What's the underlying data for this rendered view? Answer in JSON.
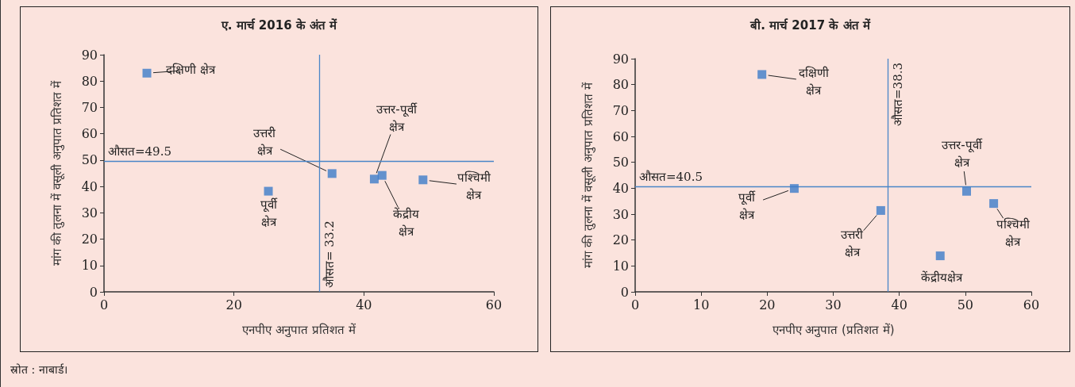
{
  "chart_data": [
    {
      "type": "scatter",
      "title": "ए. मार्च 2016 के अंत में",
      "xlabel": "एनपीए अनुपात प्रतिशत में",
      "ylabel": "मांग की तुलना में वसूली अनुपात प्रतिशत में",
      "xlim": [
        0,
        60
      ],
      "xticks": [
        0,
        20,
        40,
        60
      ],
      "ylim": [
        0,
        90
      ],
      "yticks": [
        0,
        10,
        20,
        30,
        40,
        50,
        60,
        70,
        80,
        90
      ],
      "grid": false,
      "marker": "square",
      "series": [
        {
          "color": "#3d7cc9",
          "x": [
            6.6,
            25.3,
            35.1,
            41.6,
            42.8,
            49.1
          ],
          "values": [
            83,
            38.2,
            44.9,
            42.8,
            44.2,
            42.5
          ]
        }
      ],
      "ref_lines": [
        {
          "axis": "x",
          "value": 33.2,
          "label": "औसत= 33.2",
          "color": "#4a86c8"
        },
        {
          "axis": "y",
          "value": 49.5,
          "label": "औसत=49.5",
          "color": "#4a86c8"
        }
      ],
      "annotations": [
        {
          "text": "दक्षिणी क्षेत्र",
          "x": 6.6,
          "y": 83
        },
        {
          "text": "पूर्वी क्षेत्र",
          "x": 25.3,
          "y": 38.2
        },
        {
          "text": "उत्तरी क्षेत्र",
          "x": 35.1,
          "y": 44.9
        },
        {
          "text": "उत्तर-पूर्वी क्षेत्र",
          "x": 41.6,
          "y": 42.8
        },
        {
          "text": "केंद्रीय क्षेत्र",
          "x": 42.8,
          "y": 44.2
        },
        {
          "text": "पश्चिमी क्षेत्र",
          "x": 49.1,
          "y": 42.5
        },
        "स्रोत : नाबार्ड।"
      ]
    },
    {
      "type": "scatter",
      "title": "बी. मार्च 2017 के अंत में",
      "xlabel": "एनपीए अनुपात (प्रतिशत में)",
      "ylabel": "मांग की तुलना में वसूली अनुपात प्रतिशत में",
      "xlim": [
        0,
        60
      ],
      "xticks": [
        0,
        10,
        20,
        30,
        40,
        50,
        60
      ],
      "ylim": [
        0,
        90
      ],
      "yticks": [
        0,
        10,
        20,
        30,
        40,
        50,
        60,
        70,
        80,
        90
      ],
      "grid": false,
      "marker": "square",
      "series": [
        {
          "color": "#3d7cc9",
          "x": [
            19.2,
            24.1,
            37.2,
            46.2,
            50.2,
            54.3
          ],
          "values": [
            83.9,
            39.9,
            31.4,
            13.9,
            38.8,
            34.1
          ]
        }
      ],
      "ref_lines": [
        {
          "axis": "x",
          "value": 38.3,
          "label": "औसत=38.3",
          "color": "#4a86c8"
        },
        {
          "axis": "y",
          "value": 40.5,
          "label": "औसत=40.5",
          "color": "#4a86c8"
        }
      ],
      "annotations": [
        {
          "text": "दक्षिणी क्षेत्र",
          "x": 19.2,
          "y": 83.9
        },
        {
          "text": "पूर्वी क्षेत्र",
          "x": 24.1,
          "y": 39.9
        },
        {
          "text": "उत्तरी क्षेत्र",
          "x": 37.2,
          "y": 31.4
        },
        {
          "text": "केंद्रीयक्षेत्र",
          "x": 46.2,
          "y": 13.9
        },
        {
          "text": "उत्तर-पूर्वी क्षेत्र",
          "x": 50.2,
          "y": 38.8
        },
        {
          "text": "पश्चिमी क्षेत्र",
          "x": 54.3,
          "y": 34.1
        }
      ]
    }
  ]
}
